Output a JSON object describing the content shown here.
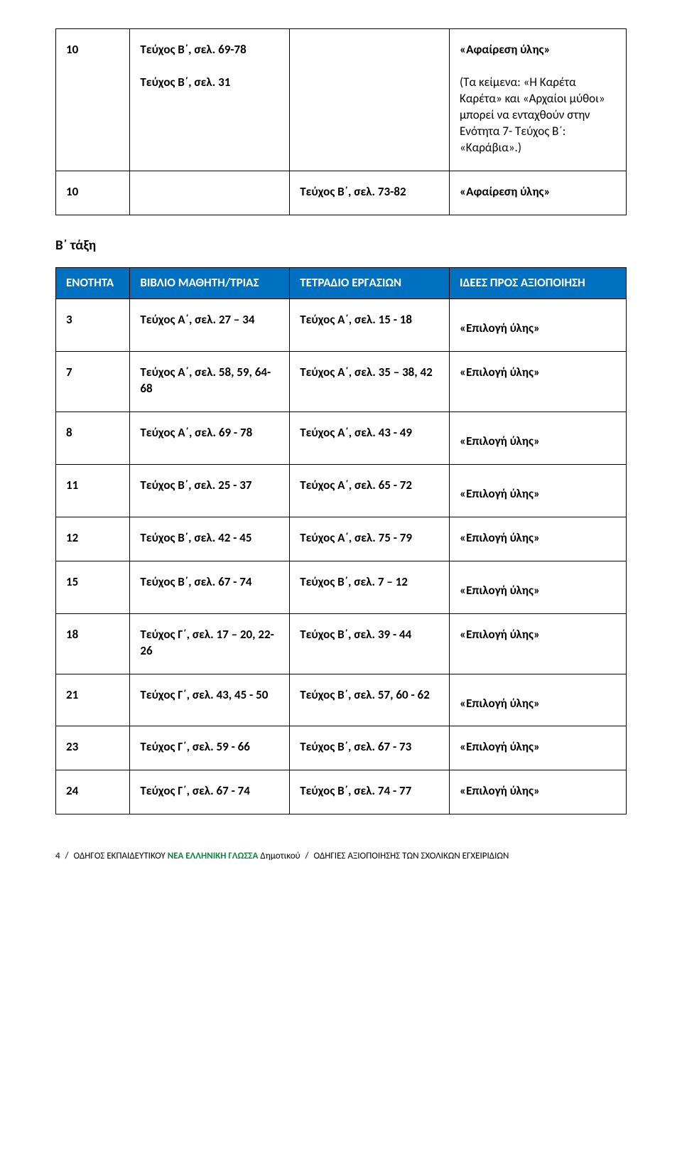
{
  "colors": {
    "header_bg": "#0070c0",
    "header_text": "#ffffff",
    "border": "#000000",
    "text": "#000000",
    "footer_green": "#0a8a3a"
  },
  "top_table": {
    "columns_widths": [
      "13%",
      "28%",
      "28%",
      "31%"
    ],
    "rows": [
      {
        "c1": "10",
        "c2_line1": "Τεύχος Β΄, σελ. 69-78",
        "c2_line2": "Τεύχος Β΄, σελ. 31",
        "c3": "",
        "c4_line1": "«Αφαίρεση ύλης»",
        "c4_line2": "(Τα κείμενα: «Η Καρέτα Καρέτα» και «Αρχαίοι μύθοι» μπορεί να ενταχθούν στην Ενότητα 7- Τεύχος Β΄: «Καράβια».)"
      },
      {
        "c1": "10",
        "c2": "",
        "c3": "Τεύχος Β΄, σελ. 73-82",
        "c4": "«Αφαίρεση ύλης»"
      }
    ]
  },
  "section_title": "Β΄ τάξη",
  "main_table": {
    "headers": [
      "ΕΝΟΤΗΤΑ",
      "ΒΙΒΛΙΟ ΜΑΘΗΤΗ/ΤΡΙΑΣ",
      "ΤΕΤΡΑΔΙΟ ΕΡΓΑΣΙΩΝ",
      "ΙΔΕΕΣ ΠΡΟΣ ΑΞΙΟΠΟΙΗΣΗ"
    ],
    "rows": [
      {
        "c1": "3",
        "c2": "Τεύχος Α΄, σελ. 27 – 34",
        "c3": "Τεύχος Α΄, σελ. 15 - 18",
        "c4": "«Επιλογή ύλης»",
        "inline": false
      },
      {
        "c1": "7",
        "c2": "Τεύχος Α΄, σελ. 58, 59, 64-68",
        "c3": "Τεύχος Α΄, σελ. 35 – 38, 42",
        "c4": "«Επιλογή ύλης»",
        "inline": true
      },
      {
        "c1": "8",
        "c2": "Τεύχος Α΄, σελ. 69 - 78",
        "c3": "Τεύχος Α΄, σελ. 43 - 49",
        "c4": "«Επιλογή ύλης»",
        "inline": false
      },
      {
        "c1": "11",
        "c2": "Τεύχος Β΄, σελ. 25 - 37",
        "c3": "Τεύχος Α΄, σελ. 65 - 72",
        "c4": "«Επιλογή ύλης»",
        "inline": false
      },
      {
        "c1": "12",
        "c2": "Τεύχος Β΄, σελ. 42 - 45",
        "c3": "Τεύχος Α΄, σελ. 75 - 79",
        "c4": "«Επιλογή ύλης»",
        "inline": true
      },
      {
        "c1": "15",
        "c2": "Τεύχος Β΄, σελ. 67 - 74",
        "c3": "Τεύχος Β΄, σελ. 7 – 12",
        "c4": "«Επιλογή ύλης»",
        "inline": false
      },
      {
        "c1": "18",
        "c2": "Τεύχος Γ΄, σελ. 17 – 20, 22-26",
        "c3": "Τεύχος Β΄, σελ. 39 - 44",
        "c4": "«Επιλογή ύλης»",
        "inline": true
      },
      {
        "c1": "21",
        "c2": "Τεύχος Γ΄, σελ. 43, 45 - 50",
        "c3": "Τεύχος Β΄, σελ. 57, 60 - 62",
        "c4": "«Επιλογή ύλης»",
        "inline": false
      },
      {
        "c1": "23",
        "c2": "Τεύχος Γ΄, σελ. 59 - 66",
        "c3": "Τεύχος Β΄, σελ. 67 - 73",
        "c4": "«Επιλογή ύλης»",
        "inline": true
      },
      {
        "c1": "24",
        "c2": "Τεύχος Γ΄, σελ. 67 - 74",
        "c3": "Τεύχος Β΄, σελ. 74 - 77",
        "c4": "«Επιλογή ύλης»",
        "inline": true
      }
    ]
  },
  "footer": {
    "page_num": "4",
    "sep": "/",
    "label1_pre": " ΟΔΗΓΟΣ ΕΚΠΑΙΔΕΥΤΙΚΟΥ ",
    "label1_green": "ΝΕΑ ΕΛΛΗΝΙΚΗ ΓΛΩΣΣΑ",
    "label1_post": "  Δημοτικού ",
    "label2": "  ΟΔΗΓΙΕΣ ΑΞΙΟΠΟΙΗΣΗΣ ΤΩΝ ΣΧΟΛΙΚΩΝ ΕΓΧΕΙΡΙΔΙΩΝ"
  }
}
